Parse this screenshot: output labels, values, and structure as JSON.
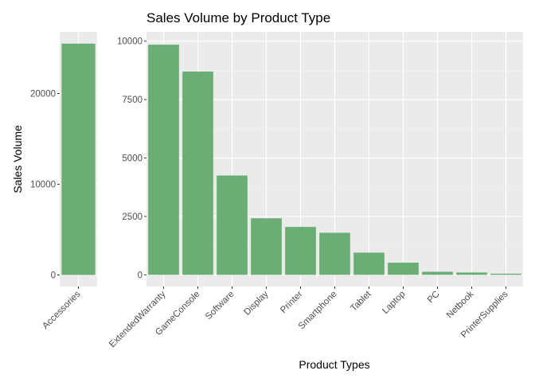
{
  "chart_data": {
    "type": "bar",
    "title": "Sales Volume by Product Type",
    "xlabel": "Product Types",
    "ylabel": "Sales Volume",
    "grid": true,
    "colors": {
      "bar": "#6bae75",
      "panel": "#ebebeb",
      "grid_major": "#ffffff",
      "grid_minor": "#f5f5f5",
      "tick_text": "#4d4d4d",
      "tick_mark": "#333333"
    },
    "panels": [
      {
        "categories": [
          "Accessories"
        ],
        "values": [
          25500
        ],
        "ylim": [
          -1270,
          26800
        ],
        "yticks": [
          0,
          10000,
          20000
        ],
        "ytick_labels": [
          "0",
          "10000",
          "20000"
        ]
      },
      {
        "categories": [
          "ExtendedWarranty",
          "GameConsole",
          "Software",
          "Display",
          "Printer",
          "Smartphone",
          "Tablet",
          "Laptop",
          "PC",
          "Netbook",
          "PrinterSupplies"
        ],
        "values": [
          9850,
          8700,
          4250,
          2420,
          2050,
          1800,
          950,
          520,
          130,
          100,
          50
        ],
        "ylim": [
          -500,
          10400
        ],
        "yticks": [
          0,
          2500,
          5000,
          7500,
          10000
        ],
        "ytick_labels": [
          "0",
          "2500",
          "5000",
          "7500",
          "10000"
        ]
      }
    ]
  }
}
